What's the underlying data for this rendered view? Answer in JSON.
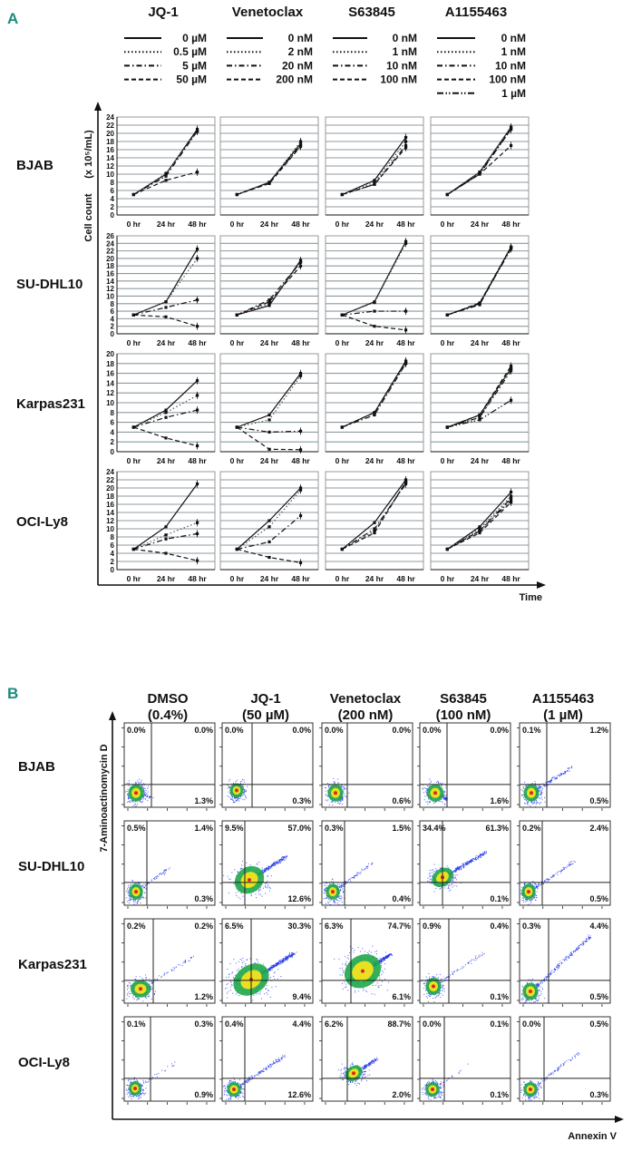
{
  "chart_data": [
    {
      "type": "line",
      "panel_label": "A",
      "xlabel": "Time",
      "ylabel": "Cell count",
      "ylabel_unit": "(x 10⁵/mL)",
      "x": [
        "0 hr",
        "24 hr",
        "48 hr"
      ],
      "grid": true,
      "drugs": [
        {
          "name": "JQ-1",
          "legend": [
            {
              "label": "0 µM",
              "style": "solid"
            },
            {
              "label": "0.5 µM",
              "style": "dotted"
            },
            {
              "label": "5 µM",
              "style": "dashdot"
            },
            {
              "label": "50 µM",
              "style": "dashed"
            }
          ]
        },
        {
          "name": "Venetoclax",
          "legend": [
            {
              "label": "0 nM",
              "style": "solid"
            },
            {
              "label": "2 nM",
              "style": "dotted"
            },
            {
              "label": "20 nM",
              "style": "dashdot"
            },
            {
              "label": "200 nM",
              "style": "dashed"
            }
          ]
        },
        {
          "name": "S63845",
          "legend": [
            {
              "label": "0 nM",
              "style": "solid"
            },
            {
              "label": "1 nM",
              "style": "dotted"
            },
            {
              "label": "10 nM",
              "style": "dashdot"
            },
            {
              "label": "100 nM",
              "style": "dashed"
            }
          ]
        },
        {
          "name": "A1155463",
          "legend": [
            {
              "label": "0 nM",
              "style": "solid"
            },
            {
              "label": "1 nM",
              "style": "dotted"
            },
            {
              "label": "10 nM",
              "style": "dashdot"
            },
            {
              "label": "100 nM",
              "style": "dashed"
            },
            {
              "label": "1 µM",
              "style": "dashdotdot"
            }
          ]
        }
      ],
      "rows": [
        {
          "cell": "BJAB",
          "ylim": [
            0,
            24
          ],
          "series": [
            [
              [
                5,
                10,
                21
              ],
              [
                5,
                10.2,
                20.5
              ],
              [
                5,
                9.5,
                20.5
              ],
              [
                5,
                8.5,
                10.5
              ]
            ],
            [
              [
                5,
                8,
                17.5
              ],
              [
                5,
                8,
                18
              ],
              [
                5,
                8,
                17
              ],
              [
                5,
                7.7,
                16.8
              ]
            ],
            [
              [
                5,
                8.5,
                19
              ],
              [
                5,
                8,
                18
              ],
              [
                5,
                7.5,
                17
              ],
              [
                5,
                7.5,
                16.5
              ]
            ],
            [
              [
                5,
                10.5,
                21.5
              ],
              [
                5,
                10.5,
                21.5
              ],
              [
                5,
                10.3,
                21
              ],
              [
                5,
                10,
                17
              ],
              [
                5,
                10,
                21
              ]
            ]
          ]
        },
        {
          "cell": "SU-DHL10",
          "ylim": [
            0,
            26
          ],
          "series": [
            [
              [
                5,
                8.5,
                22.5
              ],
              [
                5,
                8.5,
                20
              ],
              [
                5,
                7,
                9
              ],
              [
                5,
                4.5,
                2
              ]
            ],
            [
              [
                5,
                7.5,
                19.5
              ],
              [
                5,
                8,
                19
              ],
              [
                5,
                9,
                19
              ],
              [
                5,
                8.5,
                18
              ]
            ],
            [
              [
                5,
                8.5,
                24.5
              ],
              [
                5,
                8.3,
                24
              ],
              [
                5,
                6,
                6
              ],
              [
                5,
                2,
                1
              ]
            ],
            [
              [
                5,
                8,
                23
              ],
              [
                5,
                8,
                23
              ],
              [
                5,
                7.7,
                23
              ],
              [
                5,
                8.2,
                23
              ],
              [
                5,
                8,
                22.5
              ]
            ]
          ]
        },
        {
          "cell": "Karpas231",
          "ylim": [
            0,
            20
          ],
          "series": [
            [
              [
                5,
                8.5,
                14.5
              ],
              [
                5,
                8,
                11.5
              ],
              [
                5,
                7,
                8.5
              ],
              [
                5,
                2.8,
                1.2
              ]
            ],
            [
              [
                5,
                7.5,
                16
              ],
              [
                5,
                6.5,
                15.5
              ],
              [
                5,
                4,
                4.2
              ],
              [
                5,
                0.5,
                0.4
              ]
            ],
            [
              [
                5,
                8,
                18.5
              ],
              [
                5,
                8,
                18
              ],
              [
                5,
                7.5,
                18
              ],
              [
                5,
                8,
                18.5
              ]
            ],
            [
              [
                5,
                7.5,
                17
              ],
              [
                5,
                7,
                17
              ],
              [
                5,
                7,
                16.5
              ],
              [
                5,
                7.5,
                17.5
              ],
              [
                5,
                6.5,
                10.5
              ]
            ]
          ]
        },
        {
          "cell": "OCI-Ly8",
          "ylim": [
            0,
            24
          ],
          "series": [
            [
              [
                5,
                10.5,
                21
              ],
              [
                5,
                8.5,
                11.5
              ],
              [
                5,
                7.5,
                8.8
              ],
              [
                5,
                4,
                2.2
              ]
            ],
            [
              [
                5,
                12,
                20
              ],
              [
                5,
                10.5,
                19.5
              ],
              [
                5,
                6.8,
                13.2
              ],
              [
                5,
                3,
                1.7
              ]
            ],
            [
              [
                5,
                11.5,
                22
              ],
              [
                5,
                9.5,
                21.5
              ],
              [
                5,
                10,
                21
              ],
              [
                5,
                9,
                21.5
              ]
            ],
            [
              [
                5,
                10.5,
                19
              ],
              [
                5,
                10,
                18
              ],
              [
                5,
                9.5,
                17.5
              ],
              [
                5,
                9,
                16.5
              ],
              [
                5,
                9.5,
                17
              ]
            ]
          ]
        }
      ]
    },
    {
      "type": "scatter",
      "panel_label": "B",
      "xlabel": "Annexin V",
      "ylabel": "7-Aminoactinomycin D",
      "columns": [
        {
          "title": "DMSO",
          "subtitle": "(0.4%)"
        },
        {
          "title": "JQ-1",
          "subtitle": "(50 µM)"
        },
        {
          "title": "Venetoclax",
          "subtitle": "(200 nM)"
        },
        {
          "title": "S63845",
          "subtitle": "(100 nM)"
        },
        {
          "title": "A1155463",
          "subtitle": "(1 µM)"
        }
      ],
      "quadrant_order": [
        "upper-left",
        "upper-right",
        "lower-right"
      ],
      "rows": [
        {
          "cell": "BJAB",
          "quadrants": [
            [
              "0.0%",
              "0.0%",
              "1.3%"
            ],
            [
              "0.0%",
              "0.0%",
              "0.3%"
            ],
            [
              "0.0%",
              "0.0%",
              "0.6%"
            ],
            [
              "0.0%",
              "0.0%",
              "1.6%"
            ],
            [
              "0.1%",
              "1.2%",
              "0.5%"
            ]
          ]
        },
        {
          "cell": "SU-DHL10",
          "quadrants": [
            [
              "0.5%",
              "1.4%",
              "0.3%"
            ],
            [
              "9.5%",
              "57.0%",
              "12.6%"
            ],
            [
              "0.3%",
              "1.5%",
              "0.4%"
            ],
            [
              "34.4%",
              "61.3%",
              "0.1%"
            ],
            [
              "0.2%",
              "2.4%",
              "0.5%"
            ]
          ]
        },
        {
          "cell": "Karpas231",
          "quadrants": [
            [
              "0.2%",
              "0.2%",
              "1.2%"
            ],
            [
              "6.5%",
              "30.3%",
              "9.4%"
            ],
            [
              "6.3%",
              "74.7%",
              "6.1%"
            ],
            [
              "0.9%",
              "0.4%",
              "0.1%"
            ],
            [
              "0.3%",
              "4.4%",
              "0.5%"
            ]
          ]
        },
        {
          "cell": "OCI-Ly8",
          "quadrants": [
            [
              "0.1%",
              "0.3%",
              "0.9%"
            ],
            [
              "0.4%",
              "4.4%",
              "12.6%"
            ],
            [
              "6.2%",
              "88.7%",
              "2.0%"
            ],
            [
              "0.0%",
              "0.1%",
              "0.1%"
            ],
            [
              "0.0%",
              "0.5%",
              "0.3%"
            ]
          ]
        }
      ]
    }
  ]
}
